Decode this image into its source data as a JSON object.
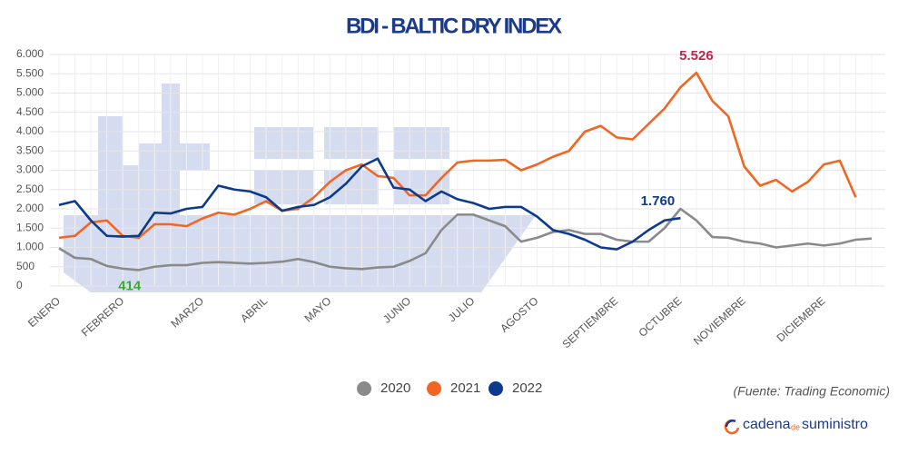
{
  "chart_data": {
    "type": "line",
    "title": "BDI - BALTIC DRY INDEX",
    "categories": [
      "ENERO",
      null,
      null,
      null,
      "FEBRERO",
      null,
      null,
      null,
      null,
      "MARZO",
      null,
      null,
      null,
      "ABRIL",
      null,
      null,
      null,
      "MAYO",
      null,
      null,
      null,
      null,
      "JUNIO",
      null,
      null,
      null,
      "JULIO",
      null,
      null,
      null,
      "AGOSTO",
      null,
      null,
      null,
      null,
      "SEPTIEMBRE",
      null,
      null,
      null,
      "OCTUBRE",
      null,
      null,
      null,
      "NOVIEMBRE",
      null,
      null,
      null,
      null,
      "DICIEMBRE",
      null,
      null,
      null
    ],
    "series": [
      {
        "name": "2020",
        "color": "#8a8a8a",
        "label_color": "#3aa935",
        "values": [
          980,
          730,
          700,
          520,
          450,
          414,
          500,
          540,
          540,
          600,
          620,
          600,
          580,
          600,
          630,
          700,
          620,
          500,
          460,
          440,
          480,
          500,
          650,
          850,
          1450,
          1850,
          1850,
          1700,
          1550,
          1150,
          1250,
          1400,
          1450,
          1350,
          1350,
          1200,
          1150,
          1150,
          1500,
          2000,
          1700,
          1270,
          1250,
          1150,
          1100,
          1000,
          1050,
          1100,
          1050,
          1100,
          1200,
          1230
        ],
        "value_labels": [
          null,
          null,
          null,
          null,
          null,
          "414",
          null,
          null,
          null,
          null,
          null,
          null,
          null,
          null,
          null,
          null,
          null,
          null,
          null,
          null,
          null,
          null,
          null,
          null,
          null,
          null,
          null,
          null,
          null,
          null,
          null,
          null,
          null,
          null,
          null,
          null,
          null,
          null,
          null,
          null,
          null,
          null,
          null,
          null,
          null,
          null,
          null,
          null,
          null,
          null,
          null,
          null
        ]
      },
      {
        "name": "2021",
        "color": "#f26522",
        "label_color": "#c0264d",
        "values": [
          1250,
          1300,
          1650,
          1700,
          1300,
          1250,
          1600,
          1600,
          1550,
          1750,
          1900,
          1850,
          2000,
          2200,
          1950,
          2000,
          2300,
          2700,
          3000,
          3150,
          2850,
          2800,
          2350,
          2350,
          2800,
          3200,
          3250,
          3250,
          3270,
          3000,
          3150,
          3350,
          3500,
          4000,
          4150,
          3850,
          3800,
          4200,
          4600,
          5150,
          5526,
          4800,
          4400,
          3100,
          2600,
          2750,
          2450,
          2700,
          3150,
          3250,
          2300,
          null
        ],
        "value_labels": [
          null,
          null,
          null,
          null,
          null,
          null,
          null,
          null,
          null,
          null,
          null,
          null,
          null,
          null,
          null,
          null,
          null,
          null,
          null,
          null,
          null,
          null,
          null,
          null,
          null,
          null,
          null,
          null,
          null,
          null,
          null,
          null,
          null,
          null,
          null,
          null,
          null,
          null,
          null,
          null,
          "5.526",
          null,
          null,
          null,
          null,
          null,
          null,
          null,
          null,
          null,
          null,
          null
        ]
      },
      {
        "name": "2022",
        "color": "#0d3a8c",
        "label_color": "#0d3a8c",
        "values": [
          2100,
          2200,
          1700,
          1300,
          1280,
          1300,
          1900,
          1880,
          2000,
          2050,
          2600,
          2500,
          2450,
          2300,
          1950,
          2050,
          2100,
          2300,
          2650,
          3100,
          3300,
          2550,
          2500,
          2200,
          2450,
          2250,
          2150,
          2000,
          2050,
          2050,
          1800,
          1450,
          1350,
          1200,
          1000,
          950,
          1150,
          1450,
          1700,
          1760,
          null,
          null,
          null,
          null,
          null,
          null,
          null,
          null,
          null,
          null,
          null,
          null
        ],
        "value_labels": [
          null,
          null,
          null,
          null,
          null,
          null,
          null,
          null,
          null,
          null,
          null,
          null,
          null,
          null,
          null,
          null,
          null,
          null,
          null,
          null,
          null,
          null,
          null,
          null,
          null,
          null,
          null,
          null,
          null,
          null,
          null,
          null,
          null,
          null,
          null,
          null,
          null,
          null,
          null,
          "1.760",
          null,
          null,
          null,
          null,
          null,
          null,
          null,
          null,
          null,
          null,
          null,
          null
        ]
      }
    ],
    "ylim": [
      0,
      6000
    ],
    "yticks": [
      0,
      500,
      {
        "value": 1000,
        "label": "1.000"
      },
      {
        "value": 1500,
        "label": "1.500"
      },
      {
        "value": 2000,
        "label": "2.000"
      },
      {
        "value": 2500,
        "label": "2.500"
      },
      {
        "value": 3000,
        "label": "3.000"
      },
      {
        "value": 3500,
        "label": "3.500"
      },
      {
        "value": 4000,
        "label": "4.000"
      },
      {
        "value": 4500,
        "label": "4.500"
      },
      {
        "value": 5000,
        "label": "5.000"
      },
      {
        "value": 5500,
        "label": "5.500"
      },
      {
        "value": 6000,
        "label": "6.000"
      }
    ],
    "grid": true,
    "legend": "bottom",
    "source": "(Fuente: Trading Economic)",
    "logo": [
      "cadena",
      "de",
      "suministro"
    ]
  }
}
